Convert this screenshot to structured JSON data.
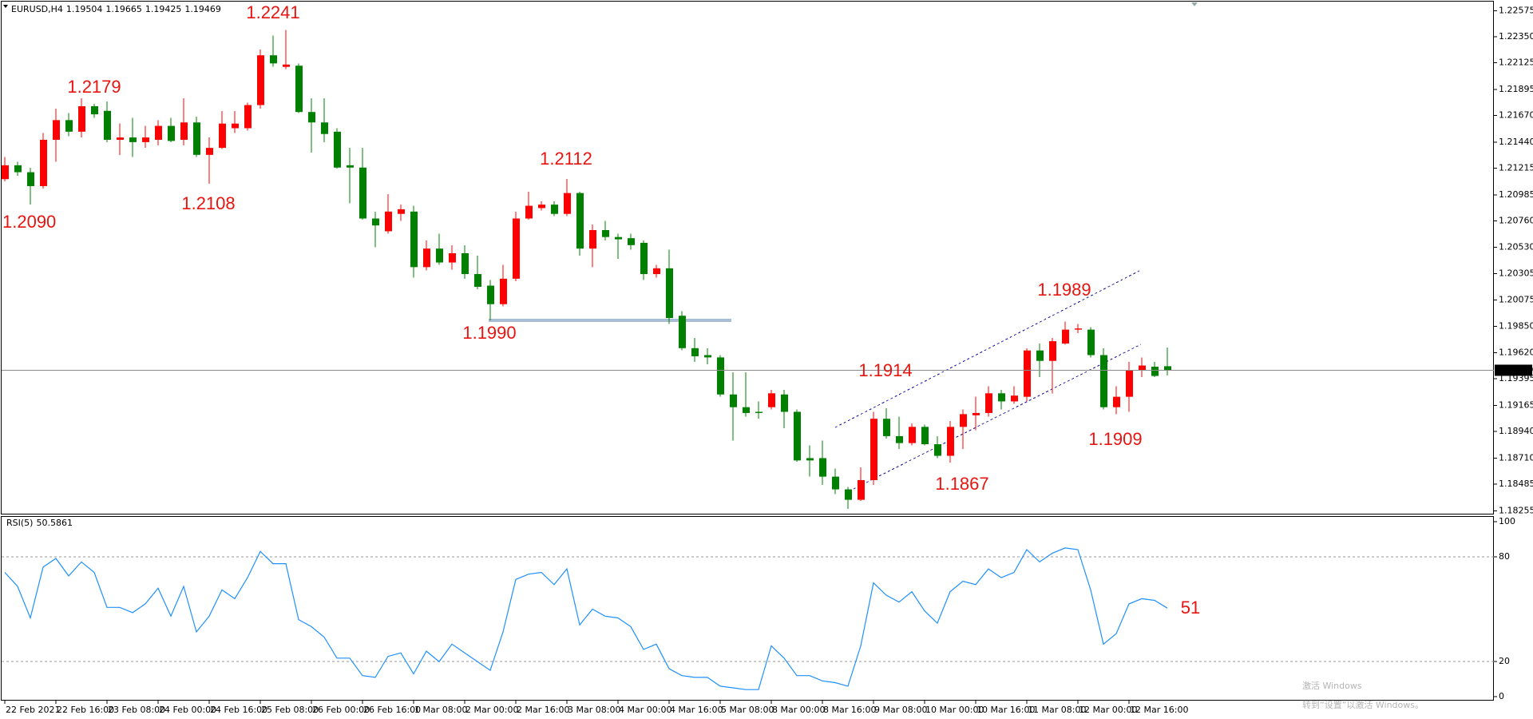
{
  "chart_data": [
    {
      "type": "candlestick",
      "symbol": "EURUSD,H4",
      "categories": [
        "22 Feb 2021",
        null,
        null,
        null,
        "22 Feb 16:00",
        null,
        null,
        null,
        "23 Feb 08:00",
        null,
        null,
        null,
        "24 Feb 00:00",
        null,
        null,
        null,
        "24 Feb 16:00",
        null,
        null,
        null,
        "25 Feb 08:00",
        null,
        null,
        null,
        "26 Feb 00:00",
        null,
        null,
        null,
        "26 Feb 16:00",
        null,
        null,
        null,
        "1 Mar 08:00",
        null,
        null,
        null,
        "2 Mar 00:00",
        null,
        null,
        null,
        "2 Mar 16:00",
        null,
        null,
        null,
        "3 Mar 08:00",
        null,
        null,
        null,
        "4 Mar 00:00",
        null,
        null,
        null,
        "4 Mar 16:00",
        null,
        null,
        null,
        "5 Mar 08:00",
        null,
        null,
        null,
        "8 Mar 00:00",
        null,
        null,
        null,
        "8 Mar 16:00",
        null,
        null,
        null,
        "9 Mar 08:00",
        null,
        null,
        null,
        "10 Mar 00:00",
        null,
        null,
        null,
        "10 Mar 16:00",
        null,
        null,
        null,
        "11 Mar 08:00",
        null,
        null,
        null,
        "12 Mar 00:00",
        null,
        null,
        null,
        "12 Mar 16:00",
        null,
        null,
        null
      ],
      "open": [
        1.2112,
        1.2124,
        1.2118,
        1.2106,
        1.2146,
        1.2163,
        1.2153,
        1.2175,
        1.2171,
        1.2146,
        1.2148,
        1.2144,
        1.2146,
        1.2158,
        1.2146,
        1.2161,
        1.2133,
        1.2139,
        1.2156,
        1.2156,
        1.2176,
        1.2219,
        1.2209,
        1.221,
        1.217,
        1.2161,
        1.2153,
        1.2124,
        1.2122,
        1.2078,
        1.2067,
        1.2082,
        1.2084,
        1.2036,
        1.2052,
        1.204,
        1.2048,
        1.203,
        1.202,
        1.2004,
        1.2026,
        1.2078,
        1.2087,
        1.209,
        1.2082,
        1.21,
        1.2052,
        1.2068,
        1.2062,
        1.2061,
        1.2057,
        1.203,
        1.2035,
        1.1994,
        1.1966,
        1.196,
        1.1958,
        1.1926,
        1.1915,
        1.1911,
        1.1915,
        1.1926,
        1.1911,
        1.1871,
        1.1871,
        1.1855,
        1.1844,
        1.1835,
        1.1852,
        1.1905,
        1.189,
        1.1884,
        1.1898,
        1.1883,
        1.1873,
        1.1898,
        1.1908,
        1.191,
        1.1927,
        1.192,
        1.1924,
        1.1964,
        1.1955,
        1.197,
        1.1982,
        1.1982,
        1.196,
        1.1915,
        1.1924,
        1.1947,
        1.195,
        1.19504
      ],
      "high": [
        1.2131,
        1.2127,
        1.2122,
        1.2152,
        1.2173,
        1.2169,
        1.2182,
        1.2177,
        1.2179,
        1.216,
        1.2165,
        1.2158,
        1.2163,
        1.2165,
        1.2182,
        1.2166,
        1.2148,
        1.2171,
        1.2171,
        1.2178,
        1.2224,
        1.2236,
        1.2241,
        1.2212,
        1.2182,
        1.2182,
        1.2156,
        1.2139,
        1.2139,
        1.2084,
        1.2099,
        1.209,
        1.2089,
        1.2059,
        1.2065,
        1.2055,
        1.2055,
        1.2046,
        1.2025,
        1.2038,
        1.2084,
        1.2101,
        1.2093,
        1.2093,
        1.2112,
        1.2101,
        1.2073,
        1.2076,
        1.2065,
        1.2065,
        1.2059,
        1.2038,
        1.2051,
        1.1998,
        1.1975,
        1.1966,
        1.196,
        1.1945,
        1.1945,
        1.192,
        1.193,
        1.193,
        1.1913,
        1.1882,
        1.1886,
        1.1862,
        1.1846,
        1.1863,
        1.1911,
        1.1914,
        1.1907,
        1.1901,
        1.19,
        1.189,
        1.1903,
        1.1913,
        1.1924,
        1.1933,
        1.193,
        1.1933,
        1.1966,
        1.197,
        1.1975,
        1.1989,
        1.1987,
        1.1984,
        1.1966,
        1.1933,
        1.1954,
        1.1958,
        1.1954,
        1.19665
      ],
      "low": [
        1.211,
        1.2115,
        1.209,
        1.2104,
        1.2127,
        1.2149,
        1.2148,
        1.2165,
        1.2144,
        1.2133,
        1.2131,
        1.2139,
        1.2141,
        1.2144,
        1.2141,
        1.2131,
        1.2108,
        1.2138,
        1.2152,
        1.2154,
        1.2173,
        1.2209,
        1.2207,
        1.2169,
        1.2135,
        1.2144,
        1.2121,
        1.2091,
        1.2077,
        1.2053,
        1.2065,
        1.2076,
        1.2027,
        1.2033,
        1.2038,
        1.2034,
        1.2026,
        1.2017,
        1.199,
        1.2002,
        1.2024,
        1.2077,
        1.2085,
        1.208,
        1.208,
        1.2046,
        1.2036,
        1.2059,
        1.2043,
        1.2051,
        1.2025,
        1.2027,
        1.1987,
        1.1964,
        1.1954,
        1.1952,
        1.1924,
        1.1886,
        1.1907,
        1.1905,
        1.1913,
        1.1897,
        1.1868,
        1.1855,
        1.1848,
        1.184,
        1.1827,
        1.1834,
        1.1848,
        1.1888,
        1.1879,
        1.1882,
        1.1882,
        1.1871,
        1.1867,
        1.1879,
        1.1895,
        1.1907,
        1.1913,
        1.1918,
        1.192,
        1.1941,
        1.1927,
        1.1969,
        1.1979,
        1.1958,
        1.1913,
        1.1909,
        1.1911,
        1.1941,
        1.1941,
        1.19425
      ],
      "close": [
        1.2124,
        1.2118,
        1.2106,
        1.2146,
        1.2163,
        1.2153,
        1.2175,
        1.2168,
        1.2146,
        1.2148,
        1.2144,
        1.2148,
        1.2158,
        1.2145,
        1.2161,
        1.2133,
        1.2139,
        1.216,
        1.216,
        1.2176,
        1.2219,
        1.2212,
        1.2211,
        1.217,
        1.2161,
        1.2151,
        1.2122,
        1.2122,
        1.2078,
        1.2072,
        1.2084,
        1.2086,
        1.2036,
        1.2052,
        1.204,
        1.2048,
        1.203,
        1.2019,
        1.2004,
        1.2026,
        1.2078,
        1.2089,
        1.209,
        1.2082,
        1.21,
        1.2052,
        1.2068,
        1.2062,
        1.206,
        1.2055,
        1.203,
        1.2035,
        1.1992,
        1.1966,
        1.1959,
        1.1958,
        1.1926,
        1.1915,
        1.191,
        1.191,
        1.1927,
        1.1911,
        1.1869,
        1.1869,
        1.1855,
        1.1844,
        1.1835,
        1.1852,
        1.1905,
        1.189,
        1.1884,
        1.1898,
        1.1883,
        1.1873,
        1.1898,
        1.1909,
        1.191,
        1.1927,
        1.192,
        1.1925,
        1.1964,
        1.1955,
        1.1972,
        1.1982,
        1.1983,
        1.196,
        1.1915,
        1.1924,
        1.1947,
        1.1951,
        1.1942,
        1.19469
      ],
      "up_color": "#ff0000",
      "down_color": "#008000",
      "ylim": [
        1.1823,
        1.2264
      ],
      "yticks": [
        1.22575,
        {
          "value": 1.2235,
          "label": "1.22350"
        },
        1.22125,
        1.21895,
        {
          "value": 1.2167,
          "label": "1.21670"
        },
        {
          "value": 1.2144,
          "label": "1.21440"
        },
        1.21215,
        1.20985,
        {
          "value": 1.2076,
          "label": "1.20760"
        },
        {
          "value": 1.2053,
          "label": "1.20530"
        },
        1.20305,
        1.20075,
        {
          "value": 1.1985,
          "label": "1.19850"
        },
        {
          "value": 1.1962,
          "label": "1.19620"
        },
        1.19395,
        1.19165,
        {
          "value": 1.1894,
          "label": "1.18940"
        },
        {
          "value": 1.1871,
          "label": "1.18710"
        },
        1.18485,
        1.18255
      ],
      "current_price_line": true,
      "annotations": [
        "1.2090",
        "1.2179",
        "1.2108",
        "1.2241",
        "1.2112",
        "1.1990",
        "1.1914",
        "1.1867",
        "1.1989",
        "1.1909"
      ]
    },
    {
      "type": "line",
      "name": "RSI(5)",
      "color": "#1e90ff",
      "values": [
        71,
        63,
        45,
        74,
        79,
        69,
        77,
        71,
        51,
        51,
        48,
        53,
        62,
        46,
        63,
        37,
        46,
        61,
        56,
        68,
        83,
        76,
        76,
        44,
        40,
        34,
        22,
        22,
        12,
        11,
        23,
        25,
        13,
        26,
        20,
        30,
        25,
        20,
        15,
        37,
        67,
        70,
        71,
        64,
        73,
        41,
        50,
        46,
        45,
        40,
        27,
        30,
        16,
        12,
        11,
        11,
        6,
        5,
        4,
        4,
        29,
        22,
        12,
        12,
        9,
        8,
        6,
        29,
        65,
        58,
        54,
        60,
        49,
        42,
        60,
        66,
        64,
        73,
        68,
        71,
        84,
        77,
        82,
        85,
        84,
        61,
        30,
        36,
        53,
        56,
        55,
        50.5861
      ],
      "ylim": [
        0,
        100
      ],
      "yticks": [
        100,
        80,
        20,
        0
      ],
      "levels": [
        80,
        20
      ],
      "annotations": [
        "51"
      ]
    }
  ],
  "watermark": {
    "title": "激活 Windows",
    "subtitle": "转到“设置”以激活 Windows。"
  }
}
